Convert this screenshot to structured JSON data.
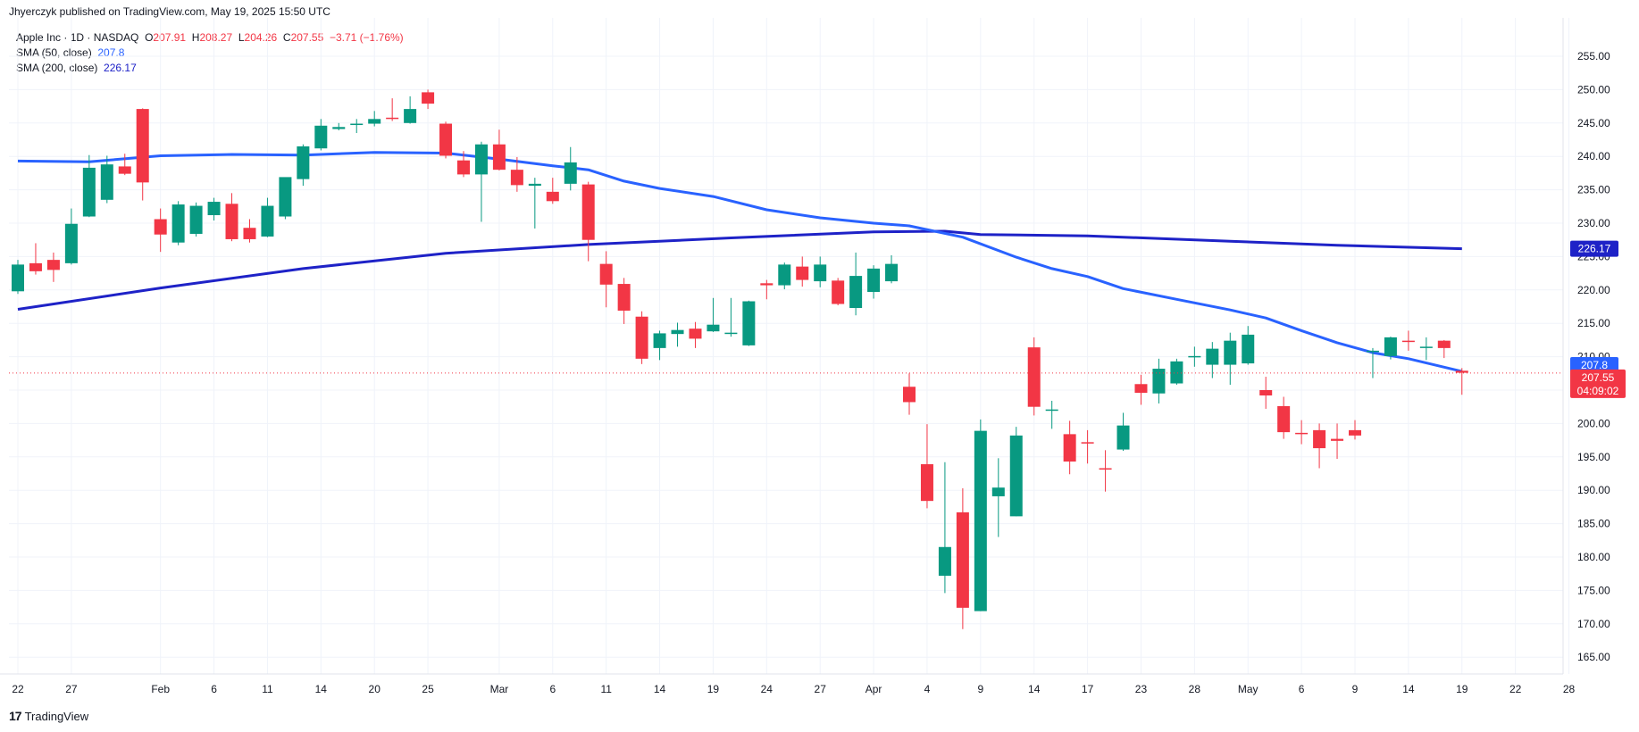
{
  "header": {
    "text": "Jhyerczyk published on TradingView.com, May 19, 2025 15:50 UTC"
  },
  "legend": {
    "symbol": "Apple Inc · 1D · NASDAQ",
    "ohlc": {
      "o_label": "O",
      "o": "207.91",
      "h_label": "H",
      "h": "208.27",
      "l_label": "L",
      "l": "204.26",
      "c_label": "C",
      "c": "207.55",
      "chg": "−3.71 (−1.76%)"
    },
    "sma50": {
      "label": "SMA (50, close)",
      "value": "207.8"
    },
    "sma200": {
      "label": "SMA (200, close)",
      "value": "226.17"
    }
  },
  "badges": {
    "sma200": "226.17",
    "sma50": "207.8",
    "price": "207.55",
    "countdown": "04:09:02"
  },
  "footer": {
    "brand": "TradingView",
    "logo_glyph": "17"
  },
  "colors": {
    "up": "#089981",
    "down": "#f23645",
    "sma50": "#2962ff",
    "sma200": "#1e22c7"
  },
  "chart_data": {
    "type": "candlestick",
    "ylim": [
      160,
      258
    ],
    "y_ticks": [
      255,
      250,
      245,
      240,
      235,
      230,
      225,
      220,
      215,
      210,
      205,
      200,
      195,
      190,
      185,
      180,
      175,
      170,
      165
    ],
    "x_ticks": [
      {
        "label": "22",
        "i": 0
      },
      {
        "label": "27",
        "i": 3
      },
      {
        "label": "Feb",
        "i": 8
      },
      {
        "label": "6",
        "i": 11
      },
      {
        "label": "11",
        "i": 14
      },
      {
        "label": "14",
        "i": 17
      },
      {
        "label": "20",
        "i": 20
      },
      {
        "label": "25",
        "i": 23
      },
      {
        "label": "Mar",
        "i": 27
      },
      {
        "label": "6",
        "i": 30
      },
      {
        "label": "11",
        "i": 33
      },
      {
        "label": "14",
        "i": 36
      },
      {
        "label": "19",
        "i": 39
      },
      {
        "label": "24",
        "i": 42
      },
      {
        "label": "27",
        "i": 45
      },
      {
        "label": "Apr",
        "i": 48
      },
      {
        "label": "4",
        "i": 51
      },
      {
        "label": "9",
        "i": 54
      },
      {
        "label": "14",
        "i": 57
      },
      {
        "label": "17",
        "i": 60
      },
      {
        "label": "23",
        "i": 63
      },
      {
        "label": "28",
        "i": 66
      },
      {
        "label": "May",
        "i": 69
      },
      {
        "label": "6",
        "i": 72
      },
      {
        "label": "9",
        "i": 75
      },
      {
        "label": "14",
        "i": 78
      },
      {
        "label": "19",
        "i": 81
      },
      {
        "label": "22",
        "i": 84
      },
      {
        "label": "28",
        "i": 87
      }
    ],
    "candles": [
      {
        "o": 219.8,
        "h": 224.5,
        "l": 219.4,
        "c": 223.8
      },
      {
        "o": 224.0,
        "h": 227.0,
        "l": 222.3,
        "c": 222.8
      },
      {
        "o": 224.5,
        "h": 225.6,
        "l": 221.2,
        "c": 223.0
      },
      {
        "o": 224.0,
        "h": 232.2,
        "l": 223.8,
        "c": 229.9
      },
      {
        "o": 231.0,
        "h": 240.2,
        "l": 230.9,
        "c": 238.3
      },
      {
        "o": 233.5,
        "h": 240.1,
        "l": 233.0,
        "c": 238.8
      },
      {
        "o": 238.5,
        "h": 240.4,
        "l": 237.2,
        "c": 237.4
      },
      {
        "o": 247.1,
        "h": 247.2,
        "l": 233.4,
        "c": 236.1
      },
      {
        "o": 230.6,
        "h": 232.2,
        "l": 225.7,
        "c": 228.3
      },
      {
        "o": 227.1,
        "h": 233.3,
        "l": 226.7,
        "c": 232.8
      },
      {
        "o": 228.4,
        "h": 233.1,
        "l": 228.0,
        "c": 232.6
      },
      {
        "o": 231.2,
        "h": 233.8,
        "l": 230.4,
        "c": 233.2
      },
      {
        "o": 232.9,
        "h": 234.5,
        "l": 227.3,
        "c": 227.6
      },
      {
        "o": 229.3,
        "h": 230.6,
        "l": 227.1,
        "c": 227.6
      },
      {
        "o": 228.0,
        "h": 233.8,
        "l": 227.9,
        "c": 232.6
      },
      {
        "o": 231.0,
        "h": 236.8,
        "l": 230.6,
        "c": 236.9
      },
      {
        "o": 236.6,
        "h": 241.8,
        "l": 235.6,
        "c": 241.5
      },
      {
        "o": 241.2,
        "h": 245.6,
        "l": 240.9,
        "c": 244.6
      },
      {
        "o": 244.1,
        "h": 245.0,
        "l": 243.9,
        "c": 244.4
      },
      {
        "o": 244.7,
        "h": 245.6,
        "l": 243.5,
        "c": 244.9
      },
      {
        "o": 244.9,
        "h": 246.8,
        "l": 244.5,
        "c": 245.6
      },
      {
        "o": 245.8,
        "h": 248.7,
        "l": 245.3,
        "c": 245.6
      },
      {
        "o": 245.0,
        "h": 249.0,
        "l": 244.9,
        "c": 247.1
      },
      {
        "o": 249.6,
        "h": 250.0,
        "l": 247.1,
        "c": 247.9
      },
      {
        "o": 244.9,
        "h": 245.2,
        "l": 239.7,
        "c": 240.1
      },
      {
        "o": 239.4,
        "h": 240.8,
        "l": 236.9,
        "c": 237.3
      },
      {
        "o": 237.3,
        "h": 242.2,
        "l": 230.2,
        "c": 241.8
      },
      {
        "o": 241.8,
        "h": 244.0,
        "l": 237.9,
        "c": 238.0
      },
      {
        "o": 238.0,
        "h": 239.9,
        "l": 234.7,
        "c": 235.7
      },
      {
        "o": 235.6,
        "h": 236.8,
        "l": 229.2,
        "c": 235.9
      },
      {
        "o": 234.7,
        "h": 236.8,
        "l": 232.9,
        "c": 233.3
      },
      {
        "o": 235.9,
        "h": 241.4,
        "l": 234.9,
        "c": 239.1
      },
      {
        "o": 235.8,
        "h": 236.2,
        "l": 224.3,
        "c": 227.5
      },
      {
        "o": 223.9,
        "h": 225.8,
        "l": 217.4,
        "c": 220.8
      },
      {
        "o": 220.9,
        "h": 221.8,
        "l": 214.9,
        "c": 216.9
      },
      {
        "o": 216.0,
        "h": 216.8,
        "l": 208.9,
        "c": 209.7
      },
      {
        "o": 211.3,
        "h": 213.9,
        "l": 209.5,
        "c": 213.5
      },
      {
        "o": 213.4,
        "h": 215.1,
        "l": 211.5,
        "c": 214.0
      },
      {
        "o": 214.2,
        "h": 215.2,
        "l": 211.3,
        "c": 212.7
      },
      {
        "o": 213.8,
        "h": 218.8,
        "l": 213.7,
        "c": 214.8
      },
      {
        "o": 213.6,
        "h": 218.8,
        "l": 213.0,
        "c": 213.6
      },
      {
        "o": 211.7,
        "h": 218.4,
        "l": 211.6,
        "c": 218.3
      },
      {
        "o": 221.0,
        "h": 221.5,
        "l": 218.6,
        "c": 220.7
      },
      {
        "o": 220.7,
        "h": 224.1,
        "l": 220.1,
        "c": 223.8
      },
      {
        "o": 223.5,
        "h": 225.0,
        "l": 220.5,
        "c": 221.5
      },
      {
        "o": 221.3,
        "h": 225.0,
        "l": 220.4,
        "c": 223.8
      },
      {
        "o": 221.4,
        "h": 221.8,
        "l": 217.7,
        "c": 217.9
      },
      {
        "o": 217.3,
        "h": 225.6,
        "l": 216.2,
        "c": 222.1
      },
      {
        "o": 219.7,
        "h": 223.7,
        "l": 218.7,
        "c": 223.2
      },
      {
        "o": 221.3,
        "h": 225.2,
        "l": 221.0,
        "c": 223.9
      },
      {
        "o": 205.5,
        "h": 207.5,
        "l": 201.3,
        "c": 203.2
      },
      {
        "o": 193.9,
        "h": 199.9,
        "l": 187.3,
        "c": 188.4
      },
      {
        "o": 177.2,
        "h": 194.2,
        "l": 174.6,
        "c": 181.5
      },
      {
        "o": 186.7,
        "h": 190.3,
        "l": 169.2,
        "c": 172.4
      },
      {
        "o": 171.9,
        "h": 200.6,
        "l": 171.9,
        "c": 198.9
      },
      {
        "o": 189.1,
        "h": 194.8,
        "l": 183.0,
        "c": 190.4
      },
      {
        "o": 186.1,
        "h": 199.5,
        "l": 186.1,
        "c": 198.2
      },
      {
        "o": 211.4,
        "h": 212.9,
        "l": 201.2,
        "c": 202.5
      },
      {
        "o": 201.9,
        "h": 203.4,
        "l": 199.2,
        "c": 202.1
      },
      {
        "o": 198.4,
        "h": 200.4,
        "l": 192.4,
        "c": 194.3
      },
      {
        "o": 197.2,
        "h": 199.0,
        "l": 194.0,
        "c": 197.0
      },
      {
        "o": 193.3,
        "h": 196.0,
        "l": 189.8,
        "c": 193.2
      },
      {
        "o": 196.1,
        "h": 201.6,
        "l": 195.9,
        "c": 199.7
      },
      {
        "o": 205.9,
        "h": 207.3,
        "l": 202.8,
        "c": 204.6
      },
      {
        "o": 204.5,
        "h": 209.7,
        "l": 203.0,
        "c": 208.2
      },
      {
        "o": 206.0,
        "h": 209.7,
        "l": 205.8,
        "c": 209.3
      },
      {
        "o": 210.0,
        "h": 211.5,
        "l": 208.5,
        "c": 210.1
      },
      {
        "o": 208.8,
        "h": 212.2,
        "l": 206.8,
        "c": 211.2
      },
      {
        "o": 208.8,
        "h": 213.6,
        "l": 205.8,
        "c": 212.4
      },
      {
        "o": 209.0,
        "h": 214.6,
        "l": 208.8,
        "c": 213.3
      },
      {
        "o": 205.0,
        "h": 207.0,
        "l": 202.2,
        "c": 204.2
      },
      {
        "o": 202.6,
        "h": 204.0,
        "l": 197.7,
        "c": 198.7
      },
      {
        "o": 198.6,
        "h": 200.5,
        "l": 196.9,
        "c": 198.4
      },
      {
        "o": 199.0,
        "h": 200.0,
        "l": 193.3,
        "c": 196.3
      },
      {
        "o": 197.7,
        "h": 200.0,
        "l": 194.7,
        "c": 197.4
      },
      {
        "o": 199.0,
        "h": 200.5,
        "l": 197.6,
        "c": 198.2
      },
      {
        "o": 210.9,
        "h": 211.3,
        "l": 206.8,
        "c": 210.9
      },
      {
        "o": 210.1,
        "h": 213.0,
        "l": 209.6,
        "c": 212.9
      },
      {
        "o": 212.4,
        "h": 213.9,
        "l": 210.9,
        "c": 212.3
      },
      {
        "o": 211.5,
        "h": 212.9,
        "l": 209.5,
        "c": 211.5
      },
      {
        "o": 212.4,
        "h": 212.5,
        "l": 209.8,
        "c": 211.3
      },
      {
        "o": 207.9,
        "h": 208.3,
        "l": 204.3,
        "c": 207.6
      }
    ],
    "sma50": [
      {
        "i": 0,
        "v": 239.3
      },
      {
        "i": 4,
        "v": 239.2
      },
      {
        "i": 8,
        "v": 240.1
      },
      {
        "i": 12,
        "v": 240.3
      },
      {
        "i": 16,
        "v": 240.2
      },
      {
        "i": 20,
        "v": 240.6
      },
      {
        "i": 24,
        "v": 240.5
      },
      {
        "i": 27,
        "v": 239.6
      },
      {
        "i": 30,
        "v": 238.6
      },
      {
        "i": 32,
        "v": 238.0
      },
      {
        "i": 34,
        "v": 236.3
      },
      {
        "i": 36,
        "v": 235.2
      },
      {
        "i": 39,
        "v": 234.0
      },
      {
        "i": 42,
        "v": 232.0
      },
      {
        "i": 45,
        "v": 230.8
      },
      {
        "i": 48,
        "v": 230.0
      },
      {
        "i": 50,
        "v": 229.6
      },
      {
        "i": 53,
        "v": 227.9
      },
      {
        "i": 56,
        "v": 224.9
      },
      {
        "i": 58,
        "v": 223.2
      },
      {
        "i": 60,
        "v": 222.0
      },
      {
        "i": 62,
        "v": 220.2
      },
      {
        "i": 65,
        "v": 218.6
      },
      {
        "i": 68,
        "v": 217.0
      },
      {
        "i": 70,
        "v": 215.8
      },
      {
        "i": 72,
        "v": 213.9
      },
      {
        "i": 74,
        "v": 212.1
      },
      {
        "i": 76,
        "v": 210.6
      },
      {
        "i": 78,
        "v": 209.7
      },
      {
        "i": 81,
        "v": 207.8
      }
    ],
    "sma200": [
      {
        "i": 0,
        "v": 217.1
      },
      {
        "i": 8,
        "v": 220.3
      },
      {
        "i": 16,
        "v": 223.2
      },
      {
        "i": 24,
        "v": 225.5
      },
      {
        "i": 32,
        "v": 226.8
      },
      {
        "i": 40,
        "v": 227.8
      },
      {
        "i": 48,
        "v": 228.7
      },
      {
        "i": 52,
        "v": 228.8
      },
      {
        "i": 54,
        "v": 228.3
      },
      {
        "i": 60,
        "v": 228.1
      },
      {
        "i": 68,
        "v": 227.3
      },
      {
        "i": 74,
        "v": 226.7
      },
      {
        "i": 81,
        "v": 226.17
      }
    ],
    "current_price": 207.55
  }
}
